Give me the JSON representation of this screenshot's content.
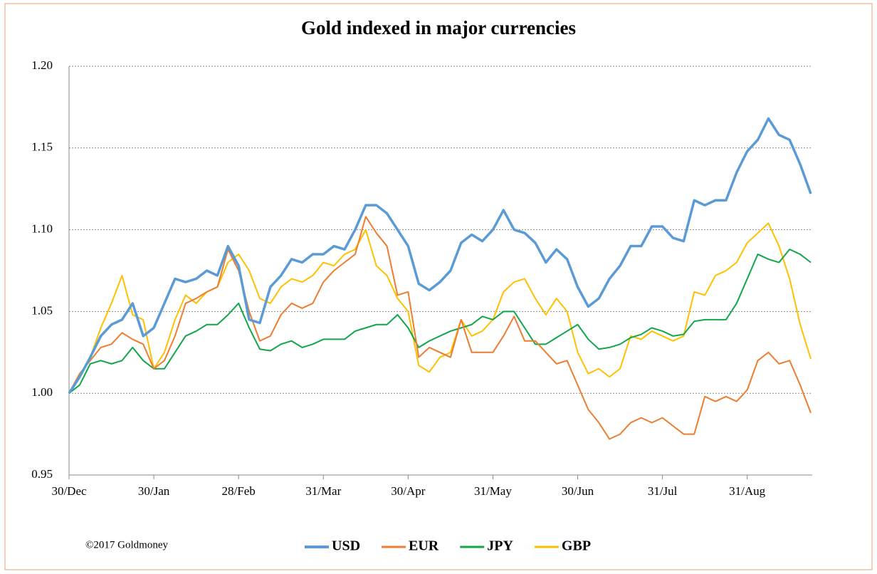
{
  "chart_data": {
    "type": "line",
    "title": "Gold indexed in major currencies",
    "annotation": "©2017 Goldmoney",
    "categories": [
      "30/Dec",
      null,
      null,
      null,
      null,
      null,
      null,
      null,
      "30/Jan",
      null,
      null,
      null,
      null,
      null,
      null,
      null,
      "28/Feb",
      null,
      null,
      null,
      null,
      null,
      null,
      null,
      "31/Mar",
      null,
      null,
      null,
      null,
      null,
      null,
      null,
      "30/Apr",
      null,
      null,
      null,
      null,
      null,
      null,
      null,
      "31/May",
      null,
      null,
      null,
      null,
      null,
      null,
      null,
      "30/Jun",
      null,
      null,
      null,
      null,
      null,
      null,
      null,
      "31/Jul",
      null,
      null,
      null,
      null,
      null,
      null,
      null,
      "31/Aug",
      null,
      null,
      null,
      null,
      null,
      null
    ],
    "ylim": [
      0.95,
      1.2
    ],
    "yticks": [
      0.95,
      {
        "value": 1.0,
        "label": "1.00"
      },
      1.05,
      {
        "value": 1.1,
        "label": "1.10"
      },
      1.15,
      {
        "value": 1.2,
        "label": "1.20"
      }
    ],
    "grid": true,
    "legend": "bottom",
    "series": [
      {
        "name": "USD",
        "color": "#5b9bd5",
        "values": [
          1.0,
          1.01,
          1.022,
          1.035,
          1.042,
          1.045,
          1.055,
          1.035,
          1.04,
          1.055,
          1.07,
          1.068,
          1.07,
          1.075,
          1.072,
          1.09,
          1.078,
          1.045,
          1.043,
          1.065,
          1.072,
          1.082,
          1.08,
          1.085,
          1.085,
          1.09,
          1.088,
          1.1,
          1.115,
          1.115,
          1.11,
          1.1,
          1.09,
          1.067,
          1.063,
          1.068,
          1.075,
          1.092,
          1.097,
          1.093,
          1.1,
          1.112,
          1.1,
          1.098,
          1.092,
          1.08,
          1.088,
          1.082,
          1.065,
          1.053,
          1.058,
          1.07,
          1.078,
          1.09,
          1.09,
          1.102,
          1.102,
          1.095,
          1.093,
          1.118,
          1.115,
          1.118,
          1.118,
          1.135,
          1.148,
          1.155,
          1.168,
          1.158,
          1.155,
          1.14,
          1.122
        ]
      },
      {
        "name": "EUR",
        "color": "#ed7d31",
        "values": [
          1.0,
          1.012,
          1.02,
          1.028,
          1.03,
          1.037,
          1.033,
          1.03,
          1.015,
          1.02,
          1.035,
          1.055,
          1.058,
          1.062,
          1.065,
          1.088,
          1.075,
          1.05,
          1.032,
          1.035,
          1.048,
          1.055,
          1.052,
          1.055,
          1.068,
          1.075,
          1.08,
          1.085,
          1.108,
          1.098,
          1.09,
          1.06,
          1.062,
          1.022,
          1.028,
          1.025,
          1.022,
          1.045,
          1.025,
          1.025,
          1.025,
          1.035,
          1.047,
          1.032,
          1.032,
          1.025,
          1.018,
          1.02,
          1.005,
          0.99,
          0.982,
          0.972,
          0.975,
          0.982,
          0.985,
          0.982,
          0.985,
          0.98,
          0.975,
          0.975,
          0.998,
          0.995,
          0.998,
          0.995,
          1.002,
          1.02,
          1.025,
          1.018,
          1.02,
          1.005,
          0.988
        ]
      },
      {
        "name": "JPY",
        "color": "#12a64b",
        "values": [
          1.0,
          1.005,
          1.018,
          1.02,
          1.018,
          1.02,
          1.028,
          1.02,
          1.015,
          1.015,
          1.025,
          1.035,
          1.038,
          1.042,
          1.042,
          1.048,
          1.055,
          1.04,
          1.027,
          1.026,
          1.03,
          1.032,
          1.028,
          1.03,
          1.033,
          1.033,
          1.033,
          1.038,
          1.04,
          1.042,
          1.042,
          1.048,
          1.04,
          1.028,
          1.032,
          1.035,
          1.038,
          1.04,
          1.042,
          1.047,
          1.045,
          1.05,
          1.05,
          1.04,
          1.03,
          1.03,
          1.034,
          1.038,
          1.042,
          1.033,
          1.027,
          1.028,
          1.03,
          1.034,
          1.036,
          1.04,
          1.038,
          1.035,
          1.036,
          1.044,
          1.045,
          1.045,
          1.045,
          1.055,
          1.07,
          1.085,
          1.082,
          1.08,
          1.088,
          1.085,
          1.08
        ]
      },
      {
        "name": "GBP",
        "color": "#ffc000",
        "values": [
          1.0,
          1.01,
          1.022,
          1.04,
          1.055,
          1.072,
          1.048,
          1.045,
          1.015,
          1.025,
          1.045,
          1.06,
          1.055,
          1.062,
          1.065,
          1.08,
          1.085,
          1.075,
          1.058,
          1.055,
          1.065,
          1.07,
          1.068,
          1.072,
          1.08,
          1.078,
          1.085,
          1.088,
          1.1,
          1.078,
          1.072,
          1.058,
          1.05,
          1.017,
          1.013,
          1.022,
          1.025,
          1.045,
          1.035,
          1.038,
          1.045,
          1.062,
          1.068,
          1.07,
          1.058,
          1.048,
          1.058,
          1.05,
          1.025,
          1.012,
          1.015,
          1.01,
          1.015,
          1.035,
          1.033,
          1.038,
          1.035,
          1.032,
          1.035,
          1.062,
          1.06,
          1.072,
          1.075,
          1.08,
          1.092,
          1.098,
          1.104,
          1.09,
          1.07,
          1.042,
          1.021
        ]
      }
    ]
  }
}
